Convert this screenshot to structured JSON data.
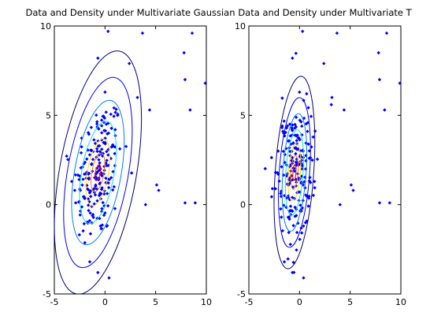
{
  "chart_data": [
    {
      "type": "scatter",
      "title": "Data and Density under Multivariate Gaussian",
      "xlabel": "",
      "ylabel": "",
      "xlim": [
        -5,
        10
      ],
      "ylim": [
        -5,
        10
      ],
      "xticks": [
        -5,
        0,
        5,
        10
      ],
      "yticks": [
        -5,
        0,
        5,
        10
      ],
      "grid": false,
      "marker_color": "#0000ff",
      "contour_levels": [
        {
          "color": "#00007f",
          "center": [
            -0.7,
            1.8
          ],
          "semi_axes": [
            3.8,
            6.9
          ],
          "angle_deg": 10
        },
        {
          "color": "#0000ff",
          "center": [
            -0.7,
            1.8
          ],
          "semi_axes": [
            3.0,
            5.4
          ],
          "angle_deg": 10
        },
        {
          "color": "#0080ff",
          "center": [
            -0.7,
            1.8
          ],
          "semi_axes": [
            2.3,
            4.1
          ],
          "angle_deg": 10
        },
        {
          "color": "#00e0ff",
          "center": [
            -0.7,
            1.8
          ],
          "semi_axes": [
            1.6,
            2.9
          ],
          "angle_deg": 10
        },
        {
          "color": "#ffe000",
          "center": [
            -0.7,
            1.8
          ],
          "semi_axes": [
            1.05,
            1.9
          ],
          "angle_deg": 10
        },
        {
          "color": "#ff8000",
          "center": [
            -0.7,
            1.8
          ],
          "semi_axes": [
            0.6,
            1.1
          ],
          "angle_deg": 10
        },
        {
          "color": "#ff0000",
          "center": [
            -0.7,
            1.8
          ],
          "semi_axes": [
            0.25,
            0.45
          ],
          "angle_deg": 10
        }
      ],
      "points": [
        [
          0.3,
          9.7
        ],
        [
          3.7,
          9.6
        ],
        [
          8.6,
          9.6
        ],
        [
          7.8,
          8.5
        ],
        [
          -0.7,
          8.2
        ],
        [
          2.4,
          7.9
        ],
        [
          7.9,
          7.0
        ],
        [
          9.9,
          6.8
        ],
        [
          0.0,
          6.3
        ],
        [
          3.2,
          6.0
        ],
        [
          4.4,
          5.3
        ],
        [
          8.4,
          5.3
        ],
        [
          5.1,
          1.1
        ],
        [
          5.3,
          0.8
        ],
        [
          7.9,
          0.1
        ],
        [
          8.9,
          0.1
        ],
        [
          4.0,
          0.0
        ],
        [
          -0.7,
          -3.8
        ],
        [
          0.4,
          -4.1
        ],
        [
          -1.5,
          -3.2
        ]
      ],
      "cloud": {
        "center": [
          -0.7,
          1.8
        ],
        "sd": [
          1.2,
          2.0
        ],
        "rho": 0.25,
        "count": 210
      }
    },
    {
      "type": "scatter",
      "title": "Data and Density under Multivariate T",
      "xlabel": "",
      "ylabel": "",
      "xlim": [
        -5,
        10
      ],
      "ylim": [
        -5,
        10
      ],
      "xticks": [
        -5,
        0,
        5,
        10
      ],
      "yticks": [
        -5,
        0,
        5,
        10
      ],
      "grid": false,
      "marker_color": "#0000ff",
      "contour_levels": [
        {
          "color": "#00007f",
          "center": [
            -0.5,
            1.8
          ],
          "semi_axes": [
            1.9,
            5.4
          ],
          "angle_deg": 4
        },
        {
          "color": "#0000ff",
          "center": [
            -0.5,
            1.8
          ],
          "semi_axes": [
            1.5,
            4.2
          ],
          "angle_deg": 4
        },
        {
          "color": "#0080ff",
          "center": [
            -0.5,
            1.8
          ],
          "semi_axes": [
            1.15,
            3.3
          ],
          "angle_deg": 4
        },
        {
          "color": "#00e0ff",
          "center": [
            -0.5,
            1.8
          ],
          "semi_axes": [
            0.85,
            2.4
          ],
          "angle_deg": 4
        },
        {
          "color": "#ffe000",
          "center": [
            -0.5,
            1.8
          ],
          "semi_axes": [
            0.6,
            1.6
          ],
          "angle_deg": 4
        },
        {
          "color": "#ff8000",
          "center": [
            -0.5,
            1.8
          ],
          "semi_axes": [
            0.35,
            0.95
          ],
          "angle_deg": 4
        },
        {
          "color": "#ff0000",
          "center": [
            -0.5,
            1.8
          ],
          "semi_axes": [
            0.15,
            0.45
          ],
          "angle_deg": 4
        }
      ],
      "points": [
        [
          0.3,
          9.7
        ],
        [
          3.7,
          9.6
        ],
        [
          8.6,
          9.6
        ],
        [
          7.8,
          8.5
        ],
        [
          -0.7,
          8.2
        ],
        [
          2.4,
          7.9
        ],
        [
          7.9,
          7.0
        ],
        [
          9.9,
          6.8
        ],
        [
          0.0,
          6.3
        ],
        [
          3.2,
          6.0
        ],
        [
          4.4,
          5.3
        ],
        [
          8.4,
          5.3
        ],
        [
          5.1,
          1.1
        ],
        [
          5.3,
          0.8
        ],
        [
          7.9,
          0.1
        ],
        [
          8.9,
          0.1
        ],
        [
          4.0,
          0.0
        ],
        [
          -0.7,
          -3.8
        ],
        [
          0.4,
          -4.1
        ],
        [
          -1.5,
          -3.2
        ]
      ],
      "cloud": {
        "center": [
          -0.5,
          1.8
        ],
        "sd": [
          0.9,
          1.9
        ],
        "rho": 0.15,
        "count": 210
      }
    }
  ]
}
